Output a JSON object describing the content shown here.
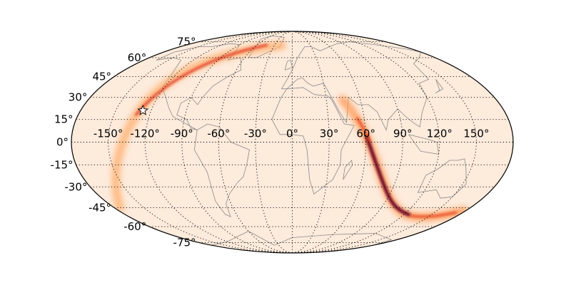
{
  "map": {
    "projection": "mollweide",
    "background_color": "#fdebdc",
    "colormap": "hot (cylon-like) heat band",
    "lat_labels": [
      "75°",
      "60°",
      "45°",
      "30°",
      "15°",
      "0°",
      "-15°",
      "-30°",
      "-45°",
      "-60°",
      "-75°"
    ],
    "lat_values": [
      75,
      60,
      45,
      30,
      15,
      0,
      -15,
      -30,
      -45,
      -60,
      -75
    ],
    "lon_labels": [
      "-150°",
      "-120°",
      "-90°",
      "-60°",
      "-30°",
      "0°",
      "30°",
      "60°",
      "90°",
      "120°",
      "150°"
    ],
    "lon_values": [
      -150,
      -120,
      -90,
      -60,
      -30,
      0,
      30,
      60,
      90,
      120,
      150
    ],
    "marker": {
      "icon": "star-icon",
      "lon": -127,
      "lat": 21
    }
  }
}
